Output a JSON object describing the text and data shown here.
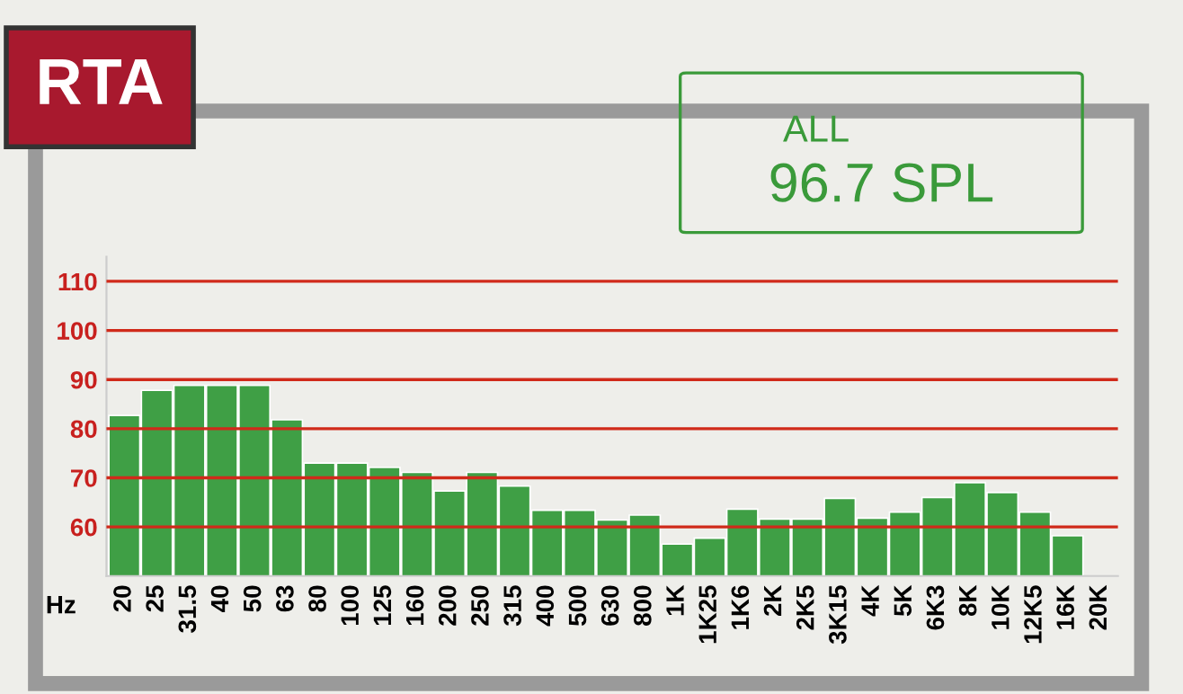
{
  "chart_data": {
    "type": "bar",
    "title": "RTA",
    "xlabel": "Hz",
    "annotations": [
      "ALL",
      "96.7 SPL"
    ],
    "categories": [
      "20",
      "25",
      "31.5",
      "40",
      "50",
      "63",
      "80",
      "100",
      "125",
      "160",
      "200",
      "250",
      "315",
      "400",
      "500",
      "630",
      "800",
      "1K",
      "1K25",
      "1K6",
      "2K",
      "2K5",
      "3K15",
      "4K",
      "5K",
      "6K3",
      "8K",
      "10K",
      "12K5",
      "16K",
      "20K"
    ],
    "values": [
      82.7,
      87.8,
      88.8,
      88.8,
      88.8,
      81.8,
      73,
      73,
      72.1,
      71.1,
      67.3,
      71.1,
      68.3,
      63.4,
      63.4,
      61.4,
      62.4,
      56.5,
      57.7,
      63.6,
      61.6,
      61.6,
      65.8,
      61.8,
      63,
      66,
      69,
      67,
      63,
      58.2,
      null
    ],
    "color": "#3f9f45",
    "ylim": [
      50,
      115
    ],
    "yticks": [
      60,
      70,
      80,
      90,
      100,
      110
    ],
    "grid": "y",
    "legend": false
  }
}
